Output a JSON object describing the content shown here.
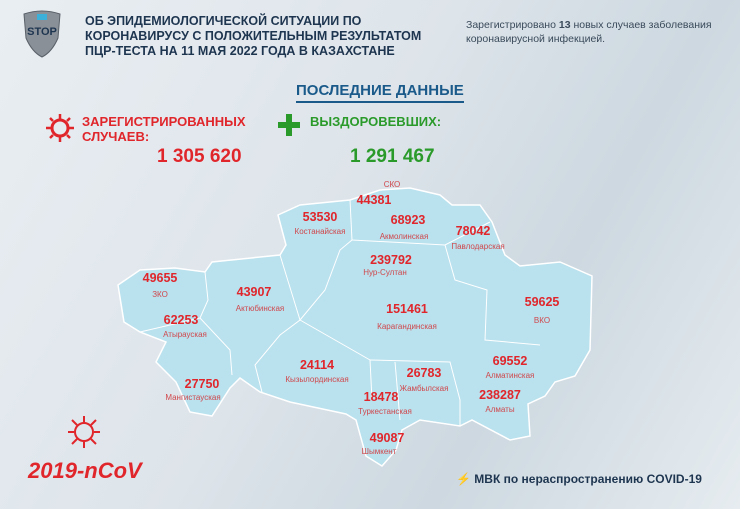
{
  "header": {
    "title_lines": [
      "ОБ ЭПИДЕМИОЛОГИЧЕСКОЙ СИТУАЦИИ ПО",
      "КОРОНАВИРУСУ С ПОЛОЖИТЕЛЬНЫМ РЕЗУЛЬТАТОМ",
      "ПЦР-ТЕСТА НА 11 МАЯ 2022 ГОДА В КАЗАХСТАНЕ"
    ],
    "note_prefix": "Зарегистрировано ",
    "note_count": "13",
    "note_suffix": " новых случаев заболевания",
    "note_line2": "коронавирусной инфекцией.",
    "logo_text": "STOP"
  },
  "latest": "ПОСЛЕДНИЕ ДАННЫЕ",
  "registered": {
    "label1": "ЗАРЕГИСТРИРОВАННЫХ",
    "label2": "СЛУЧАЕВ:",
    "value": "1 305 620"
  },
  "recovered": {
    "label": "ВЫЗДОРОВЕВШИХ:",
    "value": "1 291 467"
  },
  "regions": [
    {
      "name": "СКО",
      "value": "44381"
    },
    {
      "name": "Костанайская",
      "value": "53530"
    },
    {
      "name": "Акмолинская",
      "value": "68923"
    },
    {
      "name": "Павлодарская",
      "value": "78042"
    },
    {
      "name": "Нур-Султан",
      "value": "239792"
    },
    {
      "name": "ЗКО",
      "value": "49655"
    },
    {
      "name": "Актюбинская",
      "value": "43907"
    },
    {
      "name": "Карагандинская",
      "value": "151461"
    },
    {
      "name": "ВКО",
      "value": "59625"
    },
    {
      "name": "Атырауская",
      "value": "62253"
    },
    {
      "name": "Кызылординская",
      "value": "24114"
    },
    {
      "name": "Жамбылская",
      "value": "26783"
    },
    {
      "name": "Алматинская",
      "value": "69552"
    },
    {
      "name": "Мангистауская",
      "value": "27750"
    },
    {
      "name": "Туркестанская",
      "value": "18478"
    },
    {
      "name": "Алматы",
      "value": "238287"
    },
    {
      "name": "Шымкент",
      "value": "49087"
    }
  ],
  "brand": "2019-nCoV",
  "footer": "МВК по нераспространению COVID-19",
  "colors": {
    "map": "#b9e1ee",
    "accent_red": "#e0262b",
    "accent_green": "#2a9a2a",
    "title": "#1e3550"
  }
}
